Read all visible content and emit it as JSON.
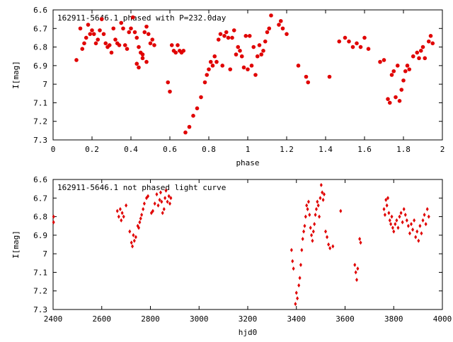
{
  "chart_data": [
    {
      "type": "scatter",
      "title": "162911-5646.1 phased with P=232.0day",
      "xlabel": "phase",
      "ylabel": "I[mag]",
      "xlim": [
        0,
        2
      ],
      "ylim": [
        6.6,
        7.3
      ],
      "y_inverted": true,
      "grid": false,
      "legend": "none",
      "marker": "filled-circle",
      "color": "#e00000",
      "x_ticks": [
        0,
        0.2,
        0.4,
        0.6,
        0.8,
        1,
        1.2,
        1.4,
        1.6,
        1.8,
        2
      ],
      "x_tick_labels": [
        "0",
        "0.2",
        "0.4",
        "0.6",
        "0.8",
        "1",
        "1.2",
        "1.4",
        "1.6",
        "1.8",
        "2"
      ],
      "y_ticks": [
        6.6,
        6.7,
        6.8,
        6.9,
        7.0,
        7.1,
        7.2,
        7.3
      ],
      "y_tick_labels": [
        "6.6",
        "6.7",
        "6.8",
        "6.9",
        "7",
        "7.1",
        "7.2",
        "7.3"
      ],
      "points": [
        [
          0.12,
          6.87
        ],
        [
          0.14,
          6.7
        ],
        [
          0.15,
          6.81
        ],
        [
          0.16,
          6.78
        ],
        [
          0.17,
          6.75
        ],
        [
          0.18,
          6.68
        ],
        [
          0.19,
          6.73
        ],
        [
          0.2,
          6.71
        ],
        [
          0.21,
          6.73
        ],
        [
          0.22,
          6.78
        ],
        [
          0.23,
          6.76
        ],
        [
          0.24,
          6.71
        ],
        [
          0.25,
          6.65
        ],
        [
          0.26,
          6.73
        ],
        [
          0.27,
          6.78
        ],
        [
          0.28,
          6.8
        ],
        [
          0.29,
          6.79
        ],
        [
          0.3,
          6.83
        ],
        [
          0.31,
          6.7
        ],
        [
          0.32,
          6.76
        ],
        [
          0.33,
          6.78
        ],
        [
          0.34,
          6.79
        ],
        [
          0.35,
          6.67
        ],
        [
          0.36,
          6.7
        ],
        [
          0.37,
          6.79
        ],
        [
          0.38,
          6.81
        ],
        [
          0.39,
          6.72
        ],
        [
          0.4,
          6.7
        ],
        [
          0.41,
          6.64
        ],
        [
          0.42,
          6.72
        ],
        [
          0.43,
          6.75
        ],
        [
          0.44,
          6.8
        ],
        [
          0.45,
          6.83
        ],
        [
          0.46,
          6.86
        ],
        [
          0.47,
          6.72
        ],
        [
          0.48,
          6.69
        ],
        [
          0.49,
          6.73
        ],
        [
          0.5,
          6.78
        ],
        [
          0.51,
          6.76
        ],
        [
          0.52,
          6.79
        ],
        [
          0.43,
          6.89
        ],
        [
          0.44,
          6.91
        ],
        [
          0.46,
          6.84
        ],
        [
          0.48,
          6.88
        ],
        [
          0.59,
          6.99
        ],
        [
          0.6,
          7.04
        ],
        [
          0.61,
          6.79
        ],
        [
          0.62,
          6.82
        ],
        [
          0.63,
          6.83
        ],
        [
          0.64,
          6.79
        ],
        [
          0.65,
          6.82
        ],
        [
          0.66,
          6.83
        ],
        [
          0.67,
          6.82
        ],
        [
          0.68,
          7.26
        ],
        [
          0.7,
          7.23
        ],
        [
          0.72,
          7.17
        ],
        [
          0.74,
          7.13
        ],
        [
          0.76,
          7.07
        ],
        [
          0.78,
          6.99
        ],
        [
          0.79,
          6.95
        ],
        [
          0.8,
          6.92
        ],
        [
          0.81,
          6.88
        ],
        [
          0.82,
          6.9
        ],
        [
          0.83,
          6.85
        ],
        [
          0.84,
          6.88
        ],
        [
          0.85,
          6.76
        ],
        [
          0.86,
          6.73
        ],
        [
          0.87,
          6.9
        ],
        [
          0.88,
          6.74
        ],
        [
          0.89,
          6.72
        ],
        [
          0.9,
          6.75
        ],
        [
          0.91,
          6.92
        ],
        [
          0.92,
          6.75
        ],
        [
          0.93,
          6.71
        ],
        [
          0.94,
          6.84
        ],
        [
          0.95,
          6.8
        ],
        [
          0.96,
          6.82
        ],
        [
          0.97,
          6.85
        ],
        [
          0.98,
          6.91
        ],
        [
          0.99,
          6.74
        ],
        [
          1.0,
          6.92
        ],
        [
          1.01,
          6.74
        ],
        [
          1.02,
          6.9
        ],
        [
          1.03,
          6.8
        ],
        [
          1.04,
          6.95
        ],
        [
          1.05,
          6.85
        ],
        [
          1.06,
          6.79
        ],
        [
          1.07,
          6.84
        ],
        [
          1.08,
          6.82
        ],
        [
          1.09,
          6.77
        ],
        [
          1.1,
          6.72
        ],
        [
          1.11,
          6.7
        ],
        [
          1.12,
          6.63
        ],
        [
          1.16,
          6.68
        ],
        [
          1.17,
          6.66
        ],
        [
          1.18,
          6.7
        ],
        [
          1.2,
          6.73
        ],
        [
          1.26,
          6.9
        ],
        [
          1.3,
          6.96
        ],
        [
          1.31,
          6.99
        ],
        [
          1.42,
          6.96
        ],
        [
          1.47,
          6.77
        ],
        [
          1.5,
          6.75
        ],
        [
          1.52,
          6.77
        ],
        [
          1.54,
          6.8
        ],
        [
          1.56,
          6.78
        ],
        [
          1.58,
          6.8
        ],
        [
          1.6,
          6.75
        ],
        [
          1.62,
          6.81
        ],
        [
          1.68,
          6.88
        ],
        [
          1.7,
          6.87
        ],
        [
          1.72,
          7.08
        ],
        [
          1.73,
          7.1
        ],
        [
          1.74,
          6.95
        ],
        [
          1.75,
          6.93
        ],
        [
          1.76,
          7.07
        ],
        [
          1.77,
          6.9
        ],
        [
          1.78,
          7.09
        ],
        [
          1.79,
          7.03
        ],
        [
          1.8,
          6.98
        ],
        [
          1.81,
          6.93
        ],
        [
          1.82,
          6.9
        ],
        [
          1.83,
          6.92
        ],
        [
          1.85,
          6.85
        ],
        [
          1.87,
          6.83
        ],
        [
          1.88,
          6.86
        ],
        [
          1.89,
          6.82
        ],
        [
          1.9,
          6.8
        ],
        [
          1.91,
          6.86
        ],
        [
          1.93,
          6.77
        ],
        [
          1.94,
          6.74
        ],
        [
          1.95,
          6.78
        ]
      ]
    },
    {
      "type": "scatter",
      "title": "162911-5646.1 not phased light curve",
      "xlabel": "hjd0",
      "ylabel": "I[mag]",
      "xlim": [
        2400,
        4000
      ],
      "ylim": [
        6.6,
        7.3
      ],
      "y_inverted": true,
      "grid": false,
      "legend": "none",
      "marker": "small-diamond",
      "color": "#e00000",
      "x_ticks": [
        2400,
        2600,
        2800,
        3000,
        3200,
        3400,
        3600,
        3800,
        4000
      ],
      "x_tick_labels": [
        "2400",
        "2600",
        "2800",
        "3000",
        "3200",
        "3400",
        "3600",
        "3800",
        "4000"
      ],
      "y_ticks": [
        6.6,
        6.7,
        6.8,
        6.9,
        7.0,
        7.1,
        7.2,
        7.3
      ],
      "y_tick_labels": [
        "6.6",
        "6.7",
        "6.8",
        "6.9",
        "7",
        "7.1",
        "7.2",
        "7.3"
      ],
      "points": [
        [
          2402,
          6.8
        ],
        [
          2402,
          6.83
        ],
        [
          2664,
          6.77
        ],
        [
          2670,
          6.8
        ],
        [
          2676,
          6.76
        ],
        [
          2680,
          6.82
        ],
        [
          2684,
          6.78
        ],
        [
          2690,
          6.8
        ],
        [
          2700,
          6.74
        ],
        [
          2715,
          6.88
        ],
        [
          2722,
          6.94
        ],
        [
          2726,
          6.96
        ],
        [
          2730,
          6.9
        ],
        [
          2734,
          6.93
        ],
        [
          2740,
          6.91
        ],
        [
          2748,
          6.85
        ],
        [
          2752,
          6.86
        ],
        [
          2756,
          6.83
        ],
        [
          2760,
          6.81
        ],
        [
          2764,
          6.79
        ],
        [
          2770,
          6.76
        ],
        [
          2775,
          6.73
        ],
        [
          2784,
          6.7
        ],
        [
          2790,
          6.69
        ],
        [
          2804,
          6.78
        ],
        [
          2810,
          6.77
        ],
        [
          2818,
          6.73
        ],
        [
          2826,
          6.68
        ],
        [
          2832,
          6.74
        ],
        [
          2838,
          6.71
        ],
        [
          2842,
          6.67
        ],
        [
          2846,
          6.72
        ],
        [
          2850,
          6.78
        ],
        [
          2856,
          6.76
        ],
        [
          2860,
          6.7
        ],
        [
          2864,
          6.66
        ],
        [
          2870,
          6.72
        ],
        [
          2876,
          6.69
        ],
        [
          2880,
          6.73
        ],
        [
          2884,
          6.7
        ],
        [
          3380,
          6.98
        ],
        [
          3384,
          7.04
        ],
        [
          3388,
          7.08
        ],
        [
          3396,
          7.27
        ],
        [
          3400,
          7.21
        ],
        [
          3404,
          7.24
        ],
        [
          3410,
          7.17
        ],
        [
          3414,
          7.13
        ],
        [
          3418,
          7.06
        ],
        [
          3422,
          6.98
        ],
        [
          3426,
          6.92
        ],
        [
          3430,
          6.88
        ],
        [
          3434,
          6.85
        ],
        [
          3438,
          6.8
        ],
        [
          3442,
          6.74
        ],
        [
          3446,
          6.76
        ],
        [
          3450,
          6.72
        ],
        [
          3454,
          6.79
        ],
        [
          3458,
          6.86
        ],
        [
          3462,
          6.9
        ],
        [
          3466,
          6.93
        ],
        [
          3470,
          6.88
        ],
        [
          3474,
          6.84
        ],
        [
          3478,
          6.79
        ],
        [
          3482,
          6.76
        ],
        [
          3486,
          6.72
        ],
        [
          3490,
          6.74
        ],
        [
          3494,
          6.8
        ],
        [
          3498,
          6.7
        ],
        [
          3502,
          6.63
        ],
        [
          3506,
          6.67
        ],
        [
          3510,
          6.71
        ],
        [
          3514,
          6.68
        ],
        [
          3520,
          6.88
        ],
        [
          3526,
          6.91
        ],
        [
          3532,
          6.95
        ],
        [
          3538,
          6.97
        ],
        [
          3550,
          6.96
        ],
        [
          3582,
          6.77
        ],
        [
          3640,
          7.06
        ],
        [
          3644,
          7.1
        ],
        [
          3648,
          7.14
        ],
        [
          3652,
          7.08
        ],
        [
          3660,
          6.92
        ],
        [
          3664,
          6.94
        ],
        [
          3760,
          6.76
        ],
        [
          3764,
          6.79
        ],
        [
          3768,
          6.71
        ],
        [
          3772,
          6.74
        ],
        [
          3776,
          6.7
        ],
        [
          3780,
          6.78
        ],
        [
          3784,
          6.82
        ],
        [
          3788,
          6.84
        ],
        [
          3792,
          6.8
        ],
        [
          3796,
          6.86
        ],
        [
          3800,
          6.88
        ],
        [
          3806,
          6.84
        ],
        [
          3812,
          6.82
        ],
        [
          3818,
          6.86
        ],
        [
          3824,
          6.8
        ],
        [
          3830,
          6.78
        ],
        [
          3836,
          6.83
        ],
        [
          3842,
          6.76
        ],
        [
          3848,
          6.79
        ],
        [
          3854,
          6.82
        ],
        [
          3860,
          6.85
        ],
        [
          3866,
          6.89
        ],
        [
          3872,
          6.84
        ],
        [
          3878,
          6.87
        ],
        [
          3884,
          6.82
        ],
        [
          3890,
          6.91
        ],
        [
          3896,
          6.88
        ],
        [
          3902,
          6.93
        ],
        [
          3908,
          6.85
        ],
        [
          3914,
          6.89
        ],
        [
          3920,
          6.82
        ],
        [
          3926,
          6.79
        ],
        [
          3932,
          6.84
        ],
        [
          3938,
          6.76
        ],
        [
          3944,
          6.8
        ]
      ]
    }
  ]
}
